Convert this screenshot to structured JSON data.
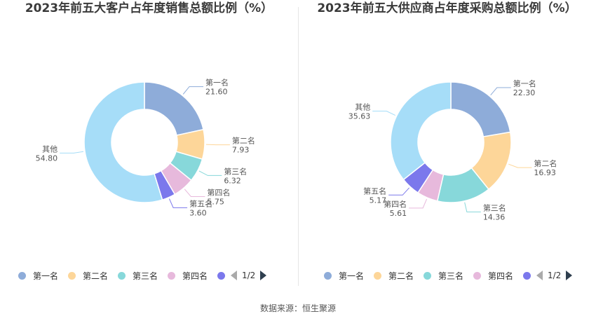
{
  "source_label": "数据来源：恒生聚源",
  "chart_data": [
    {
      "type": "pie",
      "donut": true,
      "title": "2023年前五大客户占年度销售总额比例（%）",
      "unit": "%",
      "slices": [
        {
          "name": "第一名",
          "value": 21.6,
          "label": "21.60",
          "color": "#8eacd9"
        },
        {
          "name": "第二名",
          "value": 7.93,
          "label": "7.93",
          "color": "#fdd699"
        },
        {
          "name": "第三名",
          "value": 6.32,
          "label": "6.32",
          "color": "#87d8da"
        },
        {
          "name": "第四名",
          "value": 5.75,
          "label": "5.75",
          "color": "#e7b9dc"
        },
        {
          "name": "第五名",
          "value": 3.6,
          "label": "3.60",
          "color": "#7b78ec"
        },
        {
          "name": "其他",
          "value": 54.8,
          "label": "54.80",
          "color": "#a6ddf8"
        }
      ],
      "legend": {
        "placement": "bottom",
        "items": [
          "第一名",
          "第二名",
          "第三名",
          "第四名"
        ],
        "page": "1/2"
      }
    },
    {
      "type": "pie",
      "donut": true,
      "title": "2023年前五大供应商占年度采购总额比例（%）",
      "unit": "%",
      "slices": [
        {
          "name": "第一名",
          "value": 22.3,
          "label": "22.30",
          "color": "#8eacd9"
        },
        {
          "name": "第二名",
          "value": 16.93,
          "label": "16.93",
          "color": "#fdd699"
        },
        {
          "name": "第三名",
          "value": 14.36,
          "label": "14.36",
          "color": "#87d8da"
        },
        {
          "name": "第四名",
          "value": 5.61,
          "label": "5.61",
          "color": "#e7b9dc"
        },
        {
          "name": "第五名",
          "value": 5.17,
          "label": "5.17",
          "color": "#7b78ec"
        },
        {
          "name": "其他",
          "value": 35.63,
          "label": "35.63",
          "color": "#a6ddf8"
        }
      ],
      "legend": {
        "placement": "bottom",
        "items": [
          "第一名",
          "第二名",
          "第三名",
          "第四名"
        ],
        "page": "1/2"
      }
    }
  ]
}
